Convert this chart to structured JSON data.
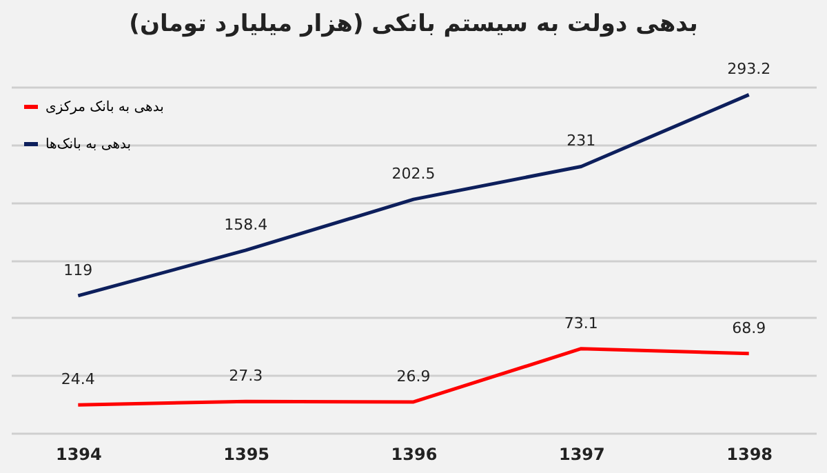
{
  "chart_data": {
    "type": "line",
    "title": "بدهی دولت به سیستم بانکی (هزار میلیارد تومان)",
    "categories": [
      "1394",
      "1395",
      "1396",
      "1397",
      "1398"
    ],
    "series": [
      {
        "name": "بدهی به بانک مرکزی",
        "color": "#ff0000",
        "values": [
          24.4,
          27.3,
          26.9,
          73.1,
          68.9
        ]
      },
      {
        "name": "بدهی به بانک‌ها",
        "color": "#0d1f5c",
        "values": [
          119,
          158.4,
          202.5,
          231,
          293.2
        ]
      }
    ],
    "grid": "y",
    "tick_labels": "x",
    "legend": "top left",
    "data_labels": true,
    "marker": "none",
    "line_style": "solid"
  }
}
